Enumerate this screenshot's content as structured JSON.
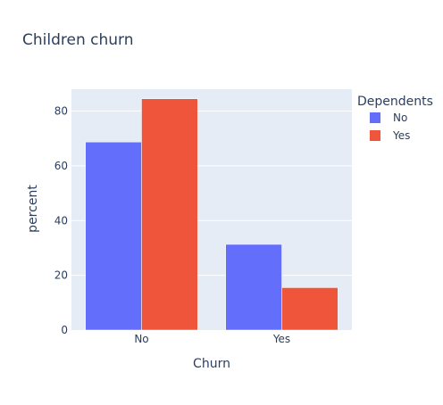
{
  "chart_data": {
    "type": "bar",
    "title": "Children churn",
    "xlabel": "Churn",
    "ylabel": "percent",
    "categories": [
      "No",
      "Yes"
    ],
    "ylim": [
      0,
      88
    ],
    "yticks": [
      0,
      20,
      40,
      60,
      80
    ],
    "grid": true,
    "legend": {
      "title": "Dependents",
      "placement": "top-right"
    },
    "series": [
      {
        "name": "No",
        "values": [
          68.7,
          31.3
        ],
        "color": "#636efa"
      },
      {
        "name": "Yes",
        "values": [
          84.5,
          15.5
        ],
        "color": "#ef553b"
      }
    ],
    "plot_background": "#e5ecf6"
  }
}
